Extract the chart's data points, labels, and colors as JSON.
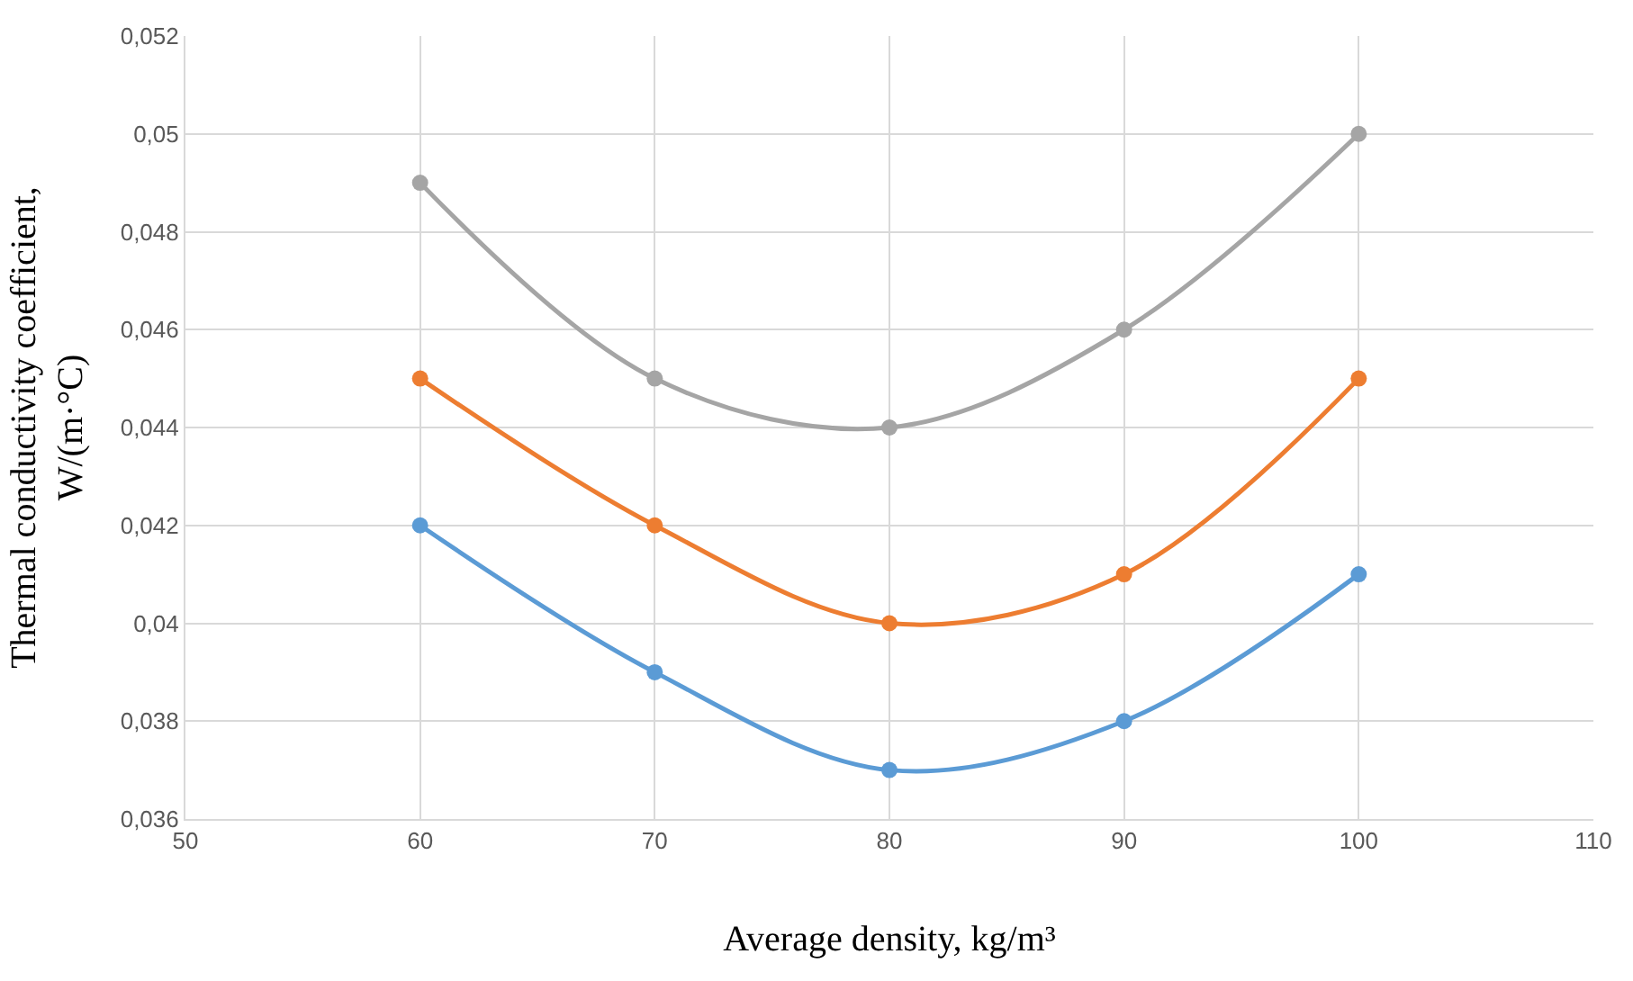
{
  "chart_data": {
    "type": "line",
    "xlabel": "Average density, kg/m³",
    "ylabel": "Thermal conductivity coefficient,\nW/(m·°C)",
    "x": [
      60,
      70,
      80,
      90,
      100
    ],
    "series": [
      {
        "color": "#a5a5a5",
        "values": [
          0.049,
          0.045,
          0.044,
          0.046,
          0.05
        ]
      },
      {
        "color": "#ed7d31",
        "values": [
          0.045,
          0.042,
          0.04,
          0.041,
          0.045
        ]
      },
      {
        "color": "#5b9bd5",
        "values": [
          0.042,
          0.039,
          0.037,
          0.038,
          0.041
        ]
      }
    ],
    "xlim": [
      50,
      110
    ],
    "xticks": [
      50,
      60,
      70,
      80,
      90,
      100,
      110
    ],
    "ylim": [
      0.036,
      0.052
    ],
    "yticks": [
      {
        "value": 0.036,
        "label": "0,036"
      },
      {
        "value": 0.038,
        "label": "0,038"
      },
      {
        "value": 0.04,
        "label": "0,04"
      },
      {
        "value": 0.042,
        "label": "0,042"
      },
      {
        "value": 0.044,
        "label": "0,044"
      },
      {
        "value": 0.046,
        "label": "0,046"
      },
      {
        "value": 0.048,
        "label": "0,048"
      },
      {
        "value": 0.05,
        "label": "0,05"
      },
      {
        "value": 0.052,
        "label": "0,052"
      }
    ],
    "grid": true,
    "marker": "circle",
    "line_style": "solid"
  }
}
